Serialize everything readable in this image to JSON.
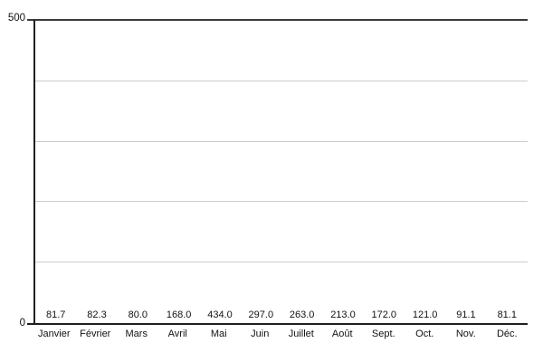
{
  "chart_data": {
    "type": "bar",
    "categories": [
      "Janvier",
      "Février",
      "Mars",
      "Avril",
      "Mai",
      "Juin",
      "Juillet",
      "Août",
      "Sept.",
      "Oct.",
      "Nov.",
      "Déc."
    ],
    "values": [
      81.7,
      82.3,
      80.0,
      168.0,
      434.0,
      297.0,
      263.0,
      213.0,
      172.0,
      121.0,
      91.1,
      81.1
    ],
    "value_labels": [
      "81.7",
      "82.3",
      "80.0",
      "168.0",
      "434.0",
      "297.0",
      "263.0",
      "213.0",
      "172.0",
      "121.0",
      "91.1",
      "81.1"
    ],
    "title": "",
    "xlabel": "",
    "ylabel": "",
    "ylim": [
      0,
      500
    ],
    "y_axis_max_label": "500",
    "y_axis_min_label": "0",
    "gridlines": [
      100,
      200,
      300,
      400
    ],
    "grid": true,
    "legend": false,
    "legend_position": "none",
    "bar_color": "#9BCBE4"
  },
  "colors": {
    "bar": "#9BCBE4",
    "grid": "#cccccc",
    "axis": "#1f1f1f",
    "top_line": "#3a3a3a",
    "text": "#111111",
    "background": "#ffffff"
  }
}
